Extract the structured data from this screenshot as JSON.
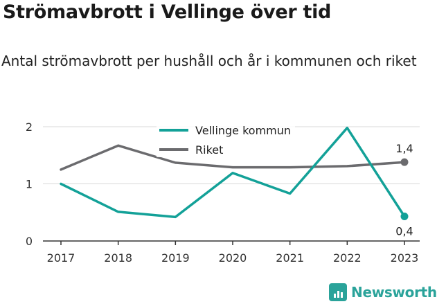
{
  "header": {
    "title": "Strömavbrott i Vellinge över tid",
    "subtitle": "Antal strömavbrott per hushåll och år i kommunen och riket"
  },
  "branding": {
    "logo_text": "Newsworthy",
    "logo_icon": "bar-chart-icon"
  },
  "colors": {
    "vellinge": "#13a198",
    "riket": "#6b6b6e",
    "grid": "#d9d9d9",
    "axis": "#333333"
  },
  "chart_data": {
    "type": "line",
    "x": [
      "2017",
      "2018",
      "2019",
      "2020",
      "2021",
      "2022",
      "2023"
    ],
    "ylim": [
      0,
      2
    ],
    "yticks": [
      "0",
      "1",
      "2"
    ],
    "grid": true,
    "legend": "top-center",
    "series": [
      {
        "name": "Vellinge kommun",
        "values": [
          1.0,
          0.51,
          0.42,
          1.19,
          0.83,
          1.98,
          0.43
        ],
        "end_label": "0,4"
      },
      {
        "name": "Riket",
        "values": [
          1.25,
          1.67,
          1.37,
          1.29,
          1.29,
          1.31,
          1.38
        ],
        "end_label": "1,4"
      }
    ]
  }
}
